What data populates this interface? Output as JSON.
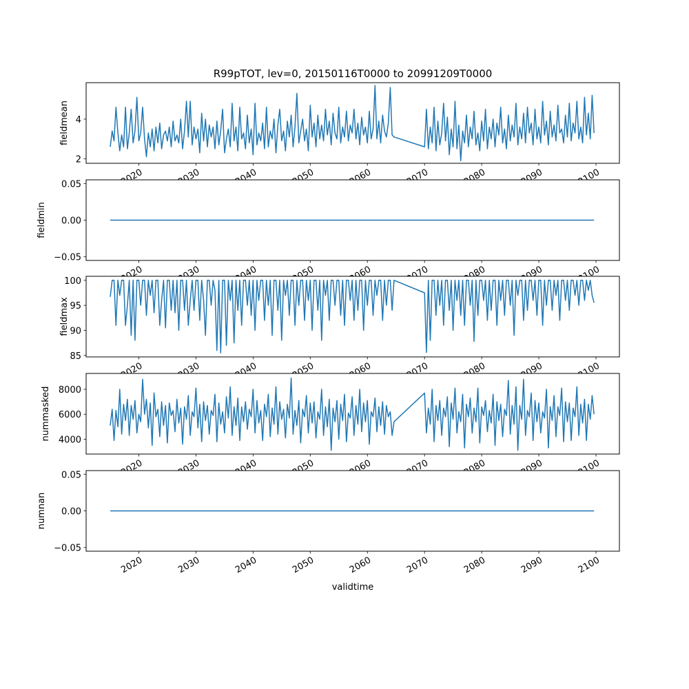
{
  "chart_data": {
    "type": "line",
    "title": "R99pTOT, lev=0, 20150116T0000 to 20991209T0000",
    "xlabel": "validtime",
    "xlim": [
      2010.78,
      2104.1
    ],
    "xticks": [
      2020,
      2030,
      2040,
      2050,
      2060,
      2070,
      2080,
      2090,
      2100
    ],
    "xtick_labels": [
      "2020",
      "2030",
      "2040",
      "2050",
      "2060",
      "2070",
      "2080",
      "2090",
      "2100"
    ],
    "line_color": "#1f77b4",
    "segments": [
      {
        "start": 2015.0,
        "step": 0.3333,
        "count": 150
      },
      {
        "start": 2070.0,
        "step": 0.3333,
        "count": 90
      }
    ],
    "panels": [
      {
        "ylabel": "fieldmean",
        "ylim": [
          1.77,
          5.84
        ],
        "yticks": [
          2,
          4
        ],
        "ytick_labels": [
          "2",
          "4"
        ],
        "values": [
          [
            2.6,
            3.4,
            2.9,
            4.6,
            3.3,
            2.4,
            3.2,
            2.6,
            4.6,
            2.5,
            3.3,
            4.5,
            2.8,
            3.4,
            5.1,
            2.9,
            3.3,
            4.6,
            3.0,
            2.1,
            3.3,
            2.6,
            3.5,
            2.4,
            3.6,
            2.8,
            3.8,
            2.5,
            3.2,
            3.4,
            2.9,
            3.6,
            2.6,
            3.9,
            2.9,
            3.2,
            2.8,
            4.0,
            2.5,
            3.4,
            4.9,
            3.1,
            4.9,
            2.7,
            3.6,
            3.0,
            3.5,
            2.3,
            4.3,
            2.9,
            4.0,
            2.6,
            3.7,
            3.1,
            3.6,
            2.5,
            3.9,
            2.7,
            3.4,
            4.5,
            2.3,
            3.0,
            3.5,
            2.6,
            4.8,
            2.9,
            3.6,
            2.4,
            4.6,
            3.0,
            3.3,
            2.5,
            4.2,
            2.8,
            3.5,
            2.2,
            4.8,
            2.7,
            3.3,
            2.9,
            3.8,
            2.5,
            4.6,
            2.6,
            3.4,
            3.0,
            4.0,
            2.3,
            3.7,
            4.5,
            2.9,
            3.4,
            2.4,
            3.9,
            3.1,
            4.2,
            2.6,
            3.6,
            5.3,
            2.8,
            3.4,
            4.0,
            2.9,
            3.5,
            2.4,
            4.7,
            3.1,
            3.8,
            2.6,
            4.2,
            3.0,
            3.7,
            2.9,
            4.5,
            3.2,
            3.9,
            2.7,
            4.3,
            3.3,
            3.0,
            4.6,
            2.8,
            3.6,
            3.1,
            4.4,
            2.9,
            3.7,
            3.3,
            4.5,
            3.0,
            3.8,
            2.7,
            4.1,
            3.2,
            3.6,
            2.8,
            4.4,
            3.0,
            3.5,
            5.7,
            3.0,
            3.9,
            2.8,
            4.2,
            3.4,
            3.1,
            3.8,
            5.6,
            3.2,
            3.1
          ],
          [
            2.6,
            4.5,
            2.5,
            3.6,
            2.8,
            4.6,
            2.4,
            3.9,
            2.7,
            3.3,
            4.8,
            2.9,
            4.1,
            2.2,
            3.5,
            2.6,
            4.9,
            2.5,
            3.7,
            1.9,
            3.4,
            2.8,
            4.2,
            2.6,
            3.6,
            3.0,
            4.4,
            2.7,
            3.3,
            2.4,
            3.9,
            2.9,
            4.5,
            2.5,
            3.6,
            3.0,
            4.0,
            2.6,
            3.8,
            3.2,
            4.6,
            2.8,
            3.5,
            2.5,
            4.2,
            2.9,
            3.7,
            3.1,
            4.8,
            2.7,
            3.6,
            3.0,
            4.3,
            2.8,
            4.6,
            3.3,
            3.8,
            2.7,
            4.5,
            3.0,
            3.6,
            2.8,
            4.9,
            3.2,
            3.9,
            2.7,
            4.4,
            3.1,
            3.7,
            2.9,
            4.7,
            3.3,
            3.5,
            2.8,
            4.2,
            3.1,
            4.8,
            2.9,
            3.8,
            3.3,
            4.9,
            3.0,
            3.6,
            2.8,
            5.1,
            3.2,
            4.3,
            3.0,
            5.2,
            3.3
          ]
        ]
      },
      {
        "ylabel": "fieldmin",
        "ylim": [
          -0.055,
          0.055
        ],
        "yticks": [
          -0.05,
          0,
          0.05
        ],
        "ytick_labels": [
          "−0.05",
          "0.00",
          "0.05"
        ],
        "constant": 0
      },
      {
        "ylabel": "fieldmax",
        "ylim": [
          84.7,
          100.8
        ],
        "yticks": [
          85,
          90,
          95,
          100
        ],
        "ytick_labels": [
          "85",
          "90",
          "95",
          "100"
        ],
        "values": [
          [
            96.7,
            100,
            100,
            91,
            100,
            97,
            100,
            100,
            91,
            95,
            100,
            89,
            100,
            88,
            100,
            100,
            95,
            100,
            100,
            93,
            100,
            97,
            100,
            93.5,
            100,
            100,
            91,
            96,
            100,
            90.5,
            100,
            100,
            94,
            100,
            93.5,
            100,
            90,
            100,
            100,
            94,
            100,
            91,
            96,
            100,
            94,
            100,
            100,
            92,
            100,
            96,
            89,
            100,
            100,
            95,
            100,
            98,
            86,
            100,
            85.5,
            100,
            100,
            87,
            100,
            96,
            100,
            87.5,
            100,
            94,
            100,
            91,
            100,
            100,
            95,
            100,
            93,
            100,
            90,
            100,
            96,
            100,
            100,
            92,
            100,
            95,
            100,
            89,
            100,
            100,
            94,
            100,
            88,
            100,
            97,
            100,
            93,
            100,
            100,
            91,
            100,
            95,
            100,
            100,
            92,
            100,
            96,
            100,
            90,
            100,
            100,
            94,
            100,
            88,
            100,
            97,
            100,
            92,
            100,
            100,
            95,
            100,
            100,
            93,
            100,
            91,
            100,
            100,
            96,
            100,
            92,
            100,
            94,
            100,
            100,
            90,
            100,
            95,
            100,
            100,
            93,
            100,
            97,
            100,
            100,
            92,
            100,
            95,
            100,
            100,
            94,
            100
          ],
          [
            97.5,
            85.6,
            100,
            88,
            100,
            100,
            93,
            100,
            95,
            100,
            91,
            100,
            100,
            94,
            100,
            90,
            100,
            96,
            100,
            93,
            100,
            91,
            100,
            100,
            95,
            100,
            87.8,
            100,
            93,
            100,
            100,
            96,
            100,
            92,
            100,
            94,
            100,
            100,
            91,
            100,
            96,
            100,
            93,
            100,
            100,
            95,
            100,
            89,
            100,
            97,
            100,
            100,
            92,
            100,
            94,
            100,
            100,
            96,
            100,
            93,
            100,
            100,
            91,
            100,
            95,
            100,
            100,
            94,
            100,
            97,
            100,
            92,
            100,
            100,
            96,
            100,
            94,
            100,
            100,
            97,
            100,
            95,
            100,
            100,
            96,
            100,
            98,
            100,
            97,
            95.5
          ]
        ]
      },
      {
        "ylabel": "nummasked",
        "ylim": [
          2810,
          9270
        ],
        "yticks": [
          4000,
          6000,
          8000
        ],
        "ytick_labels": [
          "4000",
          "6000",
          "8000"
        ],
        "values": [
          [
            5100,
            6400,
            3900,
            6300,
            5000,
            8000,
            4400,
            6800,
            5500,
            7200,
            4300,
            6700,
            5600,
            7100,
            4500,
            6000,
            5400,
            8800,
            6000,
            7200,
            4900,
            6900,
            3500,
            7700,
            5800,
            6400,
            4200,
            7000,
            5100,
            6700,
            3700,
            6900,
            5900,
            6300,
            4600,
            7200,
            5300,
            6500,
            3600,
            6600,
            5600,
            7500,
            4300,
            6200,
            5800,
            8100,
            4900,
            6800,
            3800,
            7000,
            5500,
            6700,
            4400,
            6300,
            5900,
            7600,
            3800,
            6900,
            5200,
            6200,
            4500,
            7400,
            5700,
            8200,
            4300,
            6600,
            5100,
            7300,
            3900,
            6600,
            5400,
            7000,
            4800,
            6400,
            5800,
            8000,
            4500,
            7100,
            5300,
            6300,
            3900,
            6800,
            5800,
            7600,
            4200,
            6500,
            5200,
            8200,
            4400,
            7000,
            5600,
            6400,
            4100,
            6800,
            5700,
            8900,
            4400,
            6300,
            5100,
            7100,
            3700,
            6400,
            5800,
            7500,
            4500,
            6900,
            5300,
            7000,
            4100,
            6200,
            5600,
            8000,
            4300,
            6600,
            5000,
            7200,
            3100,
            6500,
            5400,
            7100,
            4000,
            6800,
            5500,
            7600,
            3800,
            6100,
            5700,
            7400,
            4300,
            6700,
            5200,
            8000,
            4600,
            6900,
            5400,
            7100,
            3600,
            6200,
            5800,
            7300,
            4600,
            6600,
            5100,
            7000,
            4400,
            6700,
            5800,
            6200,
            4300,
            5400
          ],
          [
            7700,
            4500,
            6500,
            5200,
            8000,
            3800,
            6700,
            5500,
            7100,
            4300,
            6500,
            5800,
            7400,
            3400,
            6900,
            5600,
            8100,
            4500,
            6200,
            5400,
            7600,
            3300,
            6800,
            5800,
            7300,
            4500,
            6500,
            5400,
            8100,
            3700,
            6600,
            5900,
            7100,
            4600,
            6300,
            5300,
            7600,
            3500,
            7000,
            5500,
            6800,
            4200,
            6400,
            5900,
            8700,
            4400,
            6700,
            5200,
            8200,
            3100,
            6700,
            5600,
            8800,
            4300,
            6300,
            5800,
            7700,
            3900,
            7100,
            5400,
            6900,
            4500,
            6200,
            5700,
            8000,
            3300,
            6600,
            5500,
            7500,
            4200,
            6600,
            5900,
            8100,
            3800,
            7000,
            5400,
            6900,
            3900,
            6500,
            5800,
            8200,
            4300,
            6800,
            5300,
            7200,
            3900,
            6800,
            5600,
            7500,
            6000
          ]
        ]
      },
      {
        "ylabel": "numnan",
        "ylim": [
          -0.055,
          0.055
        ],
        "yticks": [
          -0.05,
          0,
          0.05
        ],
        "ytick_labels": [
          "−0.05",
          "0.00",
          "0.05"
        ],
        "constant": 0
      }
    ]
  }
}
